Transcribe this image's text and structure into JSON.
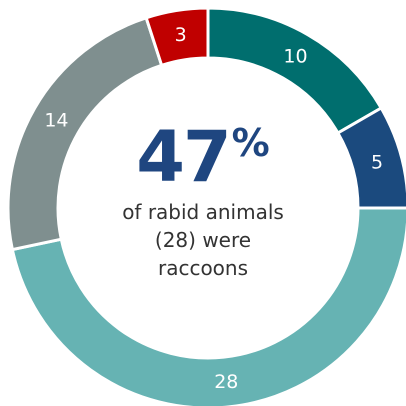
{
  "chart_data": {
    "type": "pie",
    "variant": "donut",
    "slices": [
      {
        "value": 10,
        "label": "10",
        "color": "#006e6e"
      },
      {
        "value": 5,
        "label": "5",
        "color": "#1b4a7e"
      },
      {
        "value": 28,
        "label": "28",
        "color": "#66b3b3"
      },
      {
        "value": 14,
        "label": "14",
        "color": "#7f8f8f"
      },
      {
        "value": 3,
        "label": "3",
        "color": "#c00000"
      }
    ],
    "center": {
      "number": "47",
      "percent_sign": "%",
      "caption_lines": [
        "of rabid animals",
        "(28) were",
        "raccoons"
      ]
    },
    "legend": "none"
  }
}
